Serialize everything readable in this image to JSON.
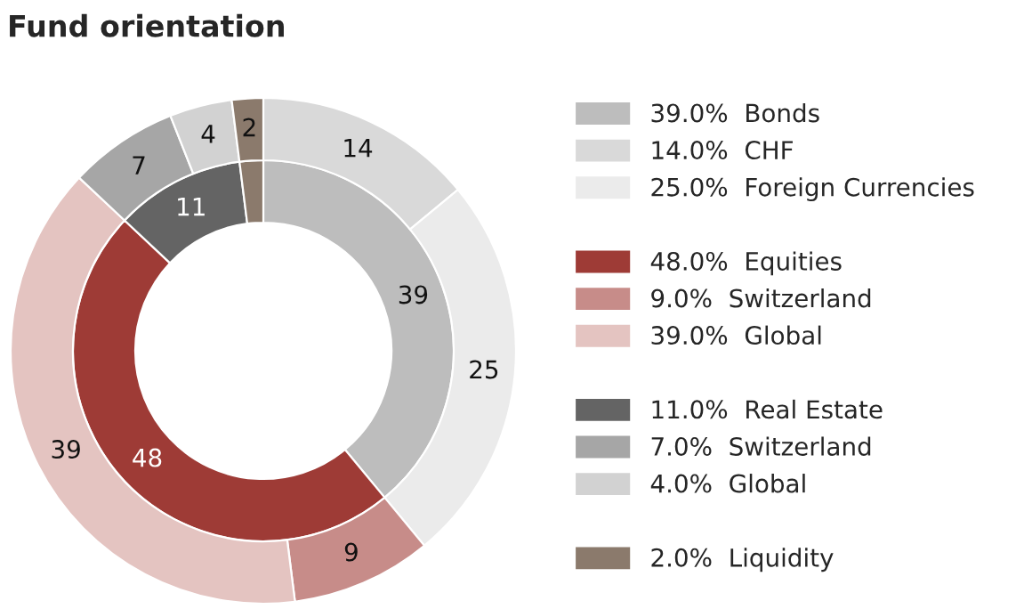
{
  "chart_data": {
    "type": "donut",
    "title": "Fund orientation",
    "legend": "right",
    "categories": [
      "39.0%  Bonds",
      "14.0%  CHF",
      "25.0%  Foreign Currencies",
      "48.0%  Equities",
      "9.0%  Switzerland",
      "39.0%  Global",
      "11.0%  Real Estate",
      "7.0%  Switzerland",
      "4.0%  Global",
      "2.0%  Liquidity"
    ],
    "colors": [
      "#bdbdbd",
      "#d9d9d9",
      "#ebebeb",
      "#9e3b36",
      "#c78c89",
      "#e4c4c1",
      "#646464",
      "#a6a6a6",
      "#d2d2d2",
      "#8b7a6c"
    ],
    "series": [
      {
        "values": [
          39,
          null,
          null,
          48,
          null,
          null,
          11,
          null,
          null,
          2
        ],
        "value_labels": [
          "39",
          null,
          null,
          "48",
          null,
          null,
          "11",
          null,
          null,
          null
        ]
      },
      {
        "values": [
          null,
          14,
          25,
          null,
          9,
          39,
          null,
          7,
          4,
          2
        ],
        "value_labels": [
          null,
          "14",
          "25",
          null,
          "9",
          "39",
          null,
          "7",
          "4",
          "2"
        ]
      }
    ]
  }
}
